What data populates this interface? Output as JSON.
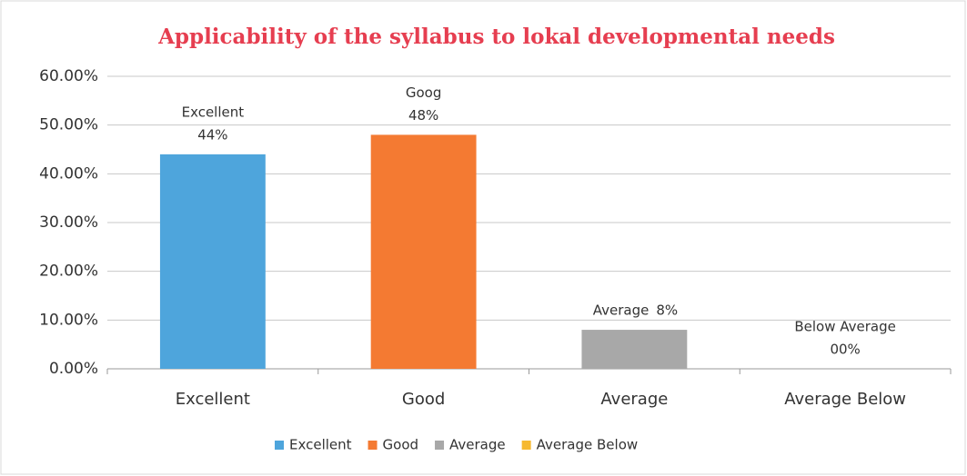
{
  "chart_data": {
    "type": "bar",
    "title": "Applicability of the syllabus to lokal developmental needs",
    "categories": [
      "Excellent",
      "Good",
      "Average",
      "Average Below"
    ],
    "values": [
      44,
      48,
      8,
      0
    ],
    "value_labels": [
      "44%",
      "48%",
      "8%",
      "00%"
    ],
    "label_prefixes": [
      "Excellent",
      "Goog",
      "Average",
      "Below Average"
    ],
    "colors": [
      "#4ea5dc",
      "#f47a32",
      "#a8a8a8",
      "#f6b930"
    ],
    "ylim": [
      0,
      60
    ],
    "yticks": [
      {
        "value": 0,
        "label": "0.00%"
      },
      {
        "value": 10,
        "label": "10.00%"
      },
      {
        "value": 20,
        "label": "20.00%"
      },
      {
        "value": 30,
        "label": "30.00%"
      },
      {
        "value": 40,
        "label": "40.00%"
      },
      {
        "value": 50,
        "label": "50.00%"
      },
      {
        "value": 60,
        "label": "60.00%"
      }
    ],
    "grid": true,
    "legend": "bottom"
  }
}
